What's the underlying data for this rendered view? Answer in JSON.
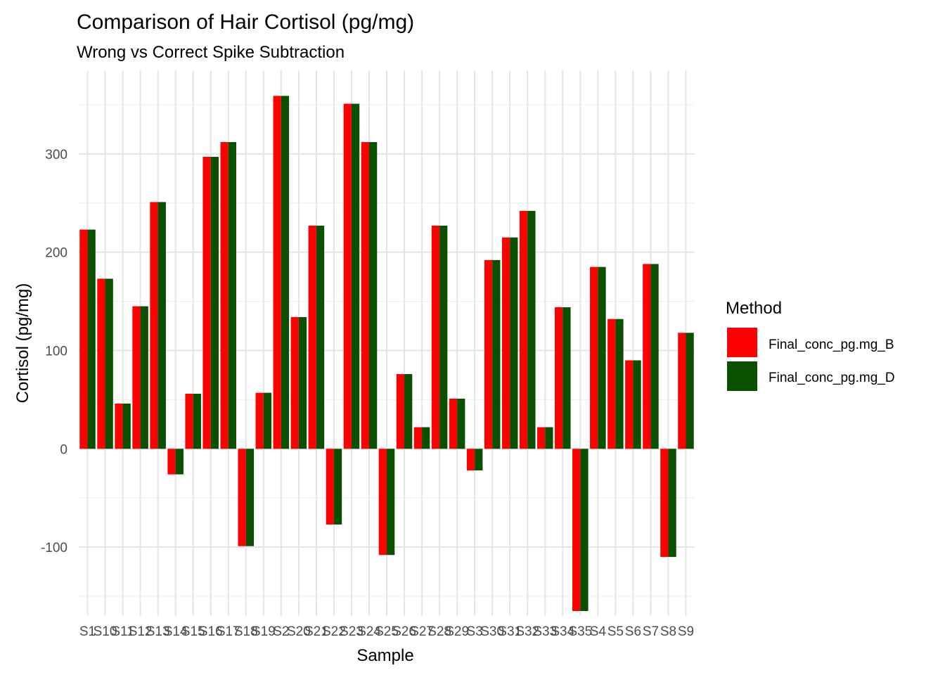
{
  "chart_data": {
    "type": "bar",
    "title": "Comparison of Hair Cortisol (pg/mg)",
    "subtitle": "Wrong vs Correct Spike Subtraction",
    "xlabel": "Sample",
    "ylabel": "Cortisol (pg/mg)",
    "ylim": [
      -170,
      385
    ],
    "yticks": [
      -100,
      0,
      100,
      200,
      300
    ],
    "grid": true,
    "legend": {
      "title": "Method",
      "placement": "right"
    },
    "categories": [
      "S1",
      "S10",
      "S11",
      "S12",
      "S13",
      "S14",
      "S15",
      "S16",
      "S17",
      "S18",
      "S19",
      "S2",
      "S20",
      "S21",
      "S22",
      "S23",
      "S24",
      "S25",
      "S26",
      "S27",
      "S28",
      "S29",
      "S3",
      "S30",
      "S31",
      "S32",
      "S33",
      "S34",
      "S35",
      "S4",
      "S5",
      "S6",
      "S7",
      "S8",
      "S9"
    ],
    "series": [
      {
        "name": "Final_conc_pg.mg_B",
        "color": "#ff0000",
        "values": [
          223,
          173,
          46,
          145,
          251,
          -26,
          56,
          297,
          312,
          -99,
          57,
          359,
          134,
          227,
          -77,
          351,
          312,
          -108,
          76,
          22,
          227,
          51,
          -22,
          192,
          215,
          242,
          22,
          144,
          -165,
          185,
          132,
          90,
          188,
          -110,
          118
        ]
      },
      {
        "name": "Final_conc_pg.mg_D",
        "color": "#0a5000",
        "values": [
          223,
          173,
          46,
          145,
          251,
          -26,
          56,
          297,
          312,
          -99,
          57,
          359,
          134,
          227,
          -77,
          351,
          312,
          -108,
          76,
          22,
          227,
          51,
          -22,
          192,
          215,
          242,
          22,
          144,
          -165,
          185,
          132,
          90,
          188,
          -110,
          118
        ]
      }
    ]
  }
}
